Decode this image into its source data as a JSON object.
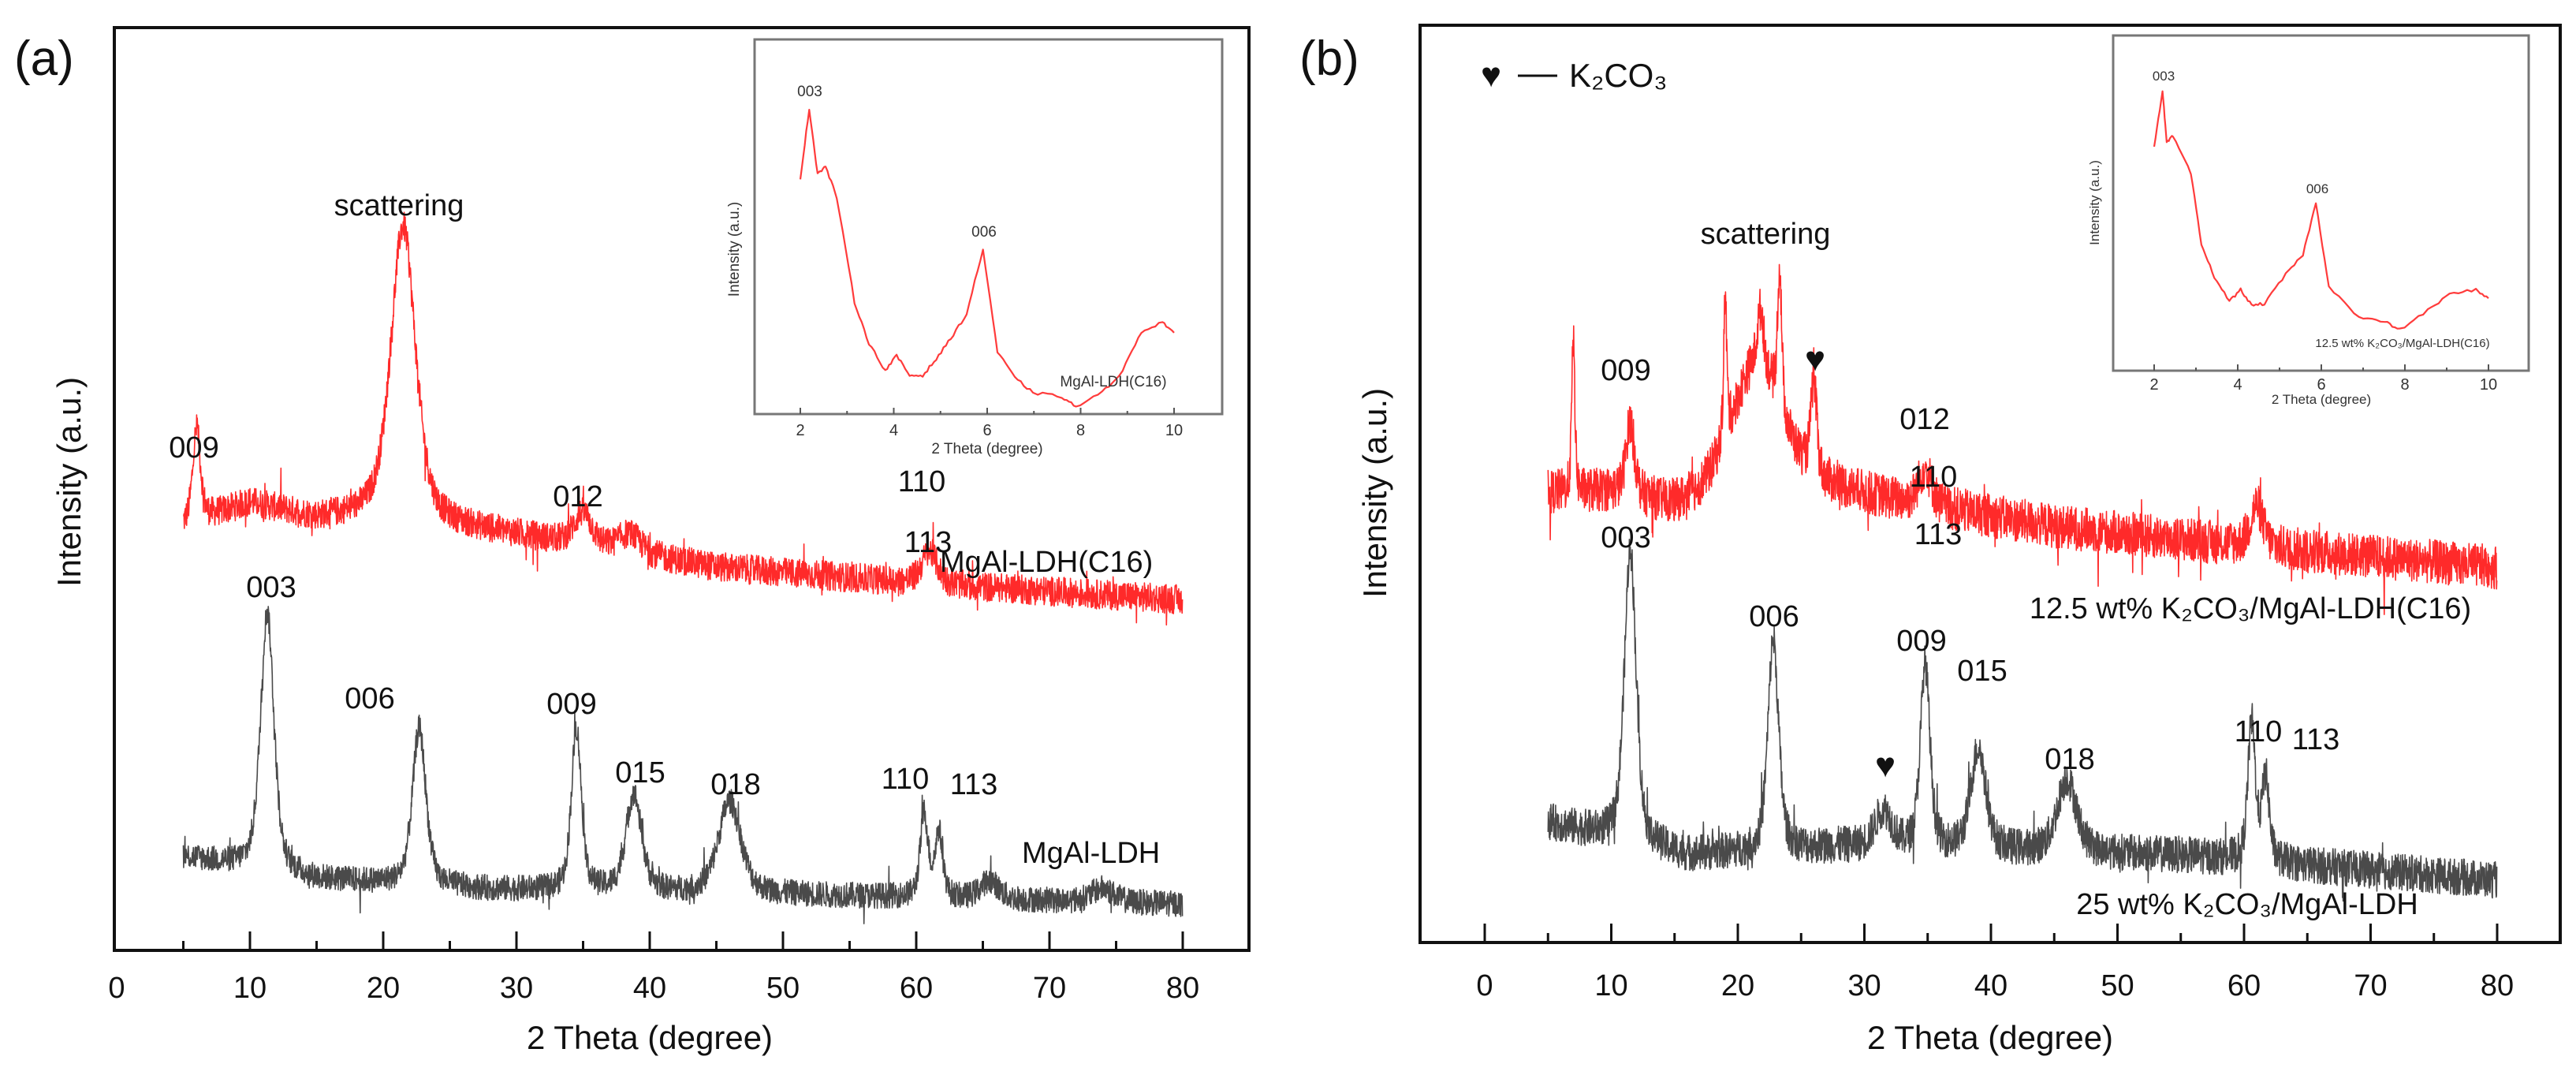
{
  "chart_data": [
    {
      "type": "line",
      "panel_label": "(a)",
      "xlabel": "2 Theta (degree)",
      "ylabel": "Intensity (a.u.)",
      "xlim": [
        0,
        85
      ],
      "xticks": [
        0,
        10,
        20,
        30,
        40,
        50,
        60,
        70,
        80
      ],
      "ylim": [
        0,
        100
      ],
      "series": [
        {
          "name": "MgAl-LDH(C16)",
          "color": "#ff2a2a",
          "x_range": [
            5,
            80
          ],
          "noise": 1.6,
          "baseline": [
            [
              5,
              46
            ],
            [
              10,
              48.5
            ],
            [
              15,
              46.8
            ],
            [
              19,
              47
            ],
            [
              30,
              45
            ],
            [
              45,
              41.5
            ],
            [
              60,
              39.8
            ],
            [
              80,
              38
            ]
          ],
          "peaks": [
            [
              6,
              10,
              0.35
            ],
            [
              21.5,
              32,
              1.1
            ],
            [
              35,
              3.5,
              0.8
            ],
            [
              38.5,
              2,
              1
            ],
            [
              61,
              3.5,
              0.7
            ]
          ]
        },
        {
          "name": "MgAl-LDH",
          "color": "#4a4a4a",
          "x_range": [
            5,
            80
          ],
          "noise": 1.4,
          "baseline": [
            [
              5,
              10.2
            ],
            [
              15,
              7.7
            ],
            [
              28,
              6.6
            ],
            [
              55,
              5.9
            ],
            [
              80,
              5
            ]
          ],
          "peaks": [
            [
              11.3,
              28,
              0.6
            ],
            [
              22.7,
              17,
              0.6
            ],
            [
              34.5,
              17.5,
              0.45
            ],
            [
              38.8,
              10.5,
              0.7
            ],
            [
              46,
              10,
              1
            ],
            [
              60.6,
              9,
              0.35
            ],
            [
              61.7,
              7,
              0.35
            ],
            [
              65.5,
              2,
              0.8
            ],
            [
              74,
              1.5,
              1
            ]
          ]
        }
      ],
      "annotations": [
        "scattering",
        "009",
        "012",
        "110",
        "113",
        "003",
        "006",
        "009",
        "015",
        "018",
        "110",
        "113"
      ],
      "sample_labels": [
        "MgAl-LDH(C16)",
        "MgAl-LDH"
      ],
      "inset": {
        "xlabel": "2 Theta (degree)",
        "ylabel": "Intensity (a.u.)",
        "xlim": [
          1.2,
          11
        ],
        "xticks": [
          2,
          4,
          6,
          8,
          10
        ],
        "ylim": [
          0,
          100
        ],
        "label": "MgAl-LDH(C16)",
        "annotations": [
          "003",
          "006"
        ],
        "color": "#ff3b3b",
        "points": [
          [
            2.0,
            62.7
          ],
          [
            2.19,
            81.5
          ],
          [
            2.37,
            64.2
          ],
          [
            2.54,
            66.1
          ],
          [
            2.78,
            57.9
          ],
          [
            3.16,
            29.9
          ],
          [
            3.47,
            18.9
          ],
          [
            3.82,
            11.6
          ],
          [
            4.06,
            15.6
          ],
          [
            4.34,
            10.3
          ],
          [
            4.62,
            10.3
          ],
          [
            4.91,
            14.7
          ],
          [
            5.22,
            20.2
          ],
          [
            5.56,
            26.7
          ],
          [
            5.91,
            44
          ],
          [
            6.22,
            16.6
          ],
          [
            6.59,
            9.7
          ],
          [
            6.98,
            5.7
          ],
          [
            7.6,
            4.6
          ],
          [
            7.9,
            1.9
          ],
          [
            8.46,
            5.7
          ],
          [
            8.9,
            11.6
          ],
          [
            9.3,
            22
          ],
          [
            9.75,
            24.6
          ],
          [
            10,
            21.7
          ]
        ]
      }
    },
    {
      "type": "line",
      "panel_label": "(b)",
      "xlabel": "2 Theta (degree)",
      "ylabel": "Intensity (a.u.)",
      "xlim": [
        -5,
        85
      ],
      "xticks": [
        0,
        10,
        20,
        30,
        40,
        50,
        60,
        70,
        80
      ],
      "ylim": [
        0,
        100
      ],
      "legend": {
        "symbol": "♥",
        "text": "K₂CO₃",
        "position": "top-left"
      },
      "series": [
        {
          "name": "12.5 wt% K₂CO₃/MgAl-LDH(C16)",
          "color": "#ff2a2a",
          "x_range": [
            5,
            80
          ],
          "noise": 2.4,
          "baseline": [
            [
              5,
              48.9
            ],
            [
              10,
              48.9
            ],
            [
              15,
              47.1
            ],
            [
              28,
              48.9
            ],
            [
              45,
              45.3
            ],
            [
              58,
              43.5
            ],
            [
              80,
              40.9
            ]
          ],
          "peaks": [
            [
              7,
              16.5,
              0.15
            ],
            [
              11.5,
              8,
              0.4
            ],
            [
              21.5,
              15,
              2.5
            ],
            [
              19,
              15,
              0.15
            ],
            [
              21.8,
              6,
              0.3
            ],
            [
              23.3,
              15,
              0.2
            ],
            [
              26,
              10,
              0.3
            ],
            [
              34.8,
              4,
              0.6
            ],
            [
              61,
              4.5,
              0.6
            ]
          ]
        },
        {
          "name": "25 wt% K₂CO₃/MgAl-LDH",
          "color": "#4a4a4a",
          "x_range": [
            5,
            80
          ],
          "noise": 2,
          "baseline": [
            [
              5,
              13.1
            ],
            [
              16,
              9.5
            ],
            [
              28,
              10.4
            ],
            [
              55,
              9.5
            ],
            [
              80,
              6.8
            ]
          ],
          "peaks": [
            [
              11.5,
              32,
              0.55
            ],
            [
              22.8,
              23,
              0.5
            ],
            [
              31.5,
              4,
              0.8
            ],
            [
              34.8,
              20,
              0.45
            ],
            [
              39,
              11,
              0.7
            ],
            [
              46,
              8,
              0.9
            ],
            [
              60.6,
              15,
              0.35
            ],
            [
              61.7,
              9,
              0.35
            ]
          ]
        }
      ],
      "annotations": [
        "scattering",
        "009",
        "♥",
        "012",
        "110",
        "113",
        "003",
        "006",
        "009",
        "015",
        "♥",
        "018",
        "110",
        "113"
      ],
      "sample_labels": [
        "12.5 wt% K₂CO₃/MgAl-LDH(C16)",
        "25 wt% K₂CO₃/MgAl-LDH"
      ],
      "inset": {
        "xlabel": "2 Theta (degree)",
        "ylabel": "Intensity (a.u.)",
        "xlim": [
          1,
          11
        ],
        "xticks": [
          2,
          4,
          6,
          8,
          10
        ],
        "ylim": [
          0,
          100
        ],
        "label": "12.5 wt% K₂CO₃/MgAl-LDH(C16)",
        "annotations": [
          "003",
          "006"
        ],
        "color": "#ff3b3b",
        "points": [
          [
            2.0,
            67
          ],
          [
            2.2,
            83.5
          ],
          [
            2.3,
            68
          ],
          [
            2.45,
            70
          ],
          [
            2.88,
            58.8
          ],
          [
            3.13,
            37.6
          ],
          [
            3.44,
            28
          ],
          [
            3.8,
            20.7
          ],
          [
            4.07,
            24.2
          ],
          [
            4.33,
            19.5
          ],
          [
            4.64,
            20
          ],
          [
            5.15,
            28.7
          ],
          [
            5.56,
            34.6
          ],
          [
            5.87,
            50
          ],
          [
            6.18,
            25.2
          ],
          [
            6.9,
            15.8
          ],
          [
            7.52,
            14.6
          ],
          [
            7.88,
            12.2
          ],
          [
            8.55,
            18
          ],
          [
            9.07,
            22.8
          ],
          [
            9.7,
            24.2
          ],
          [
            10,
            21.6
          ]
        ]
      }
    }
  ]
}
